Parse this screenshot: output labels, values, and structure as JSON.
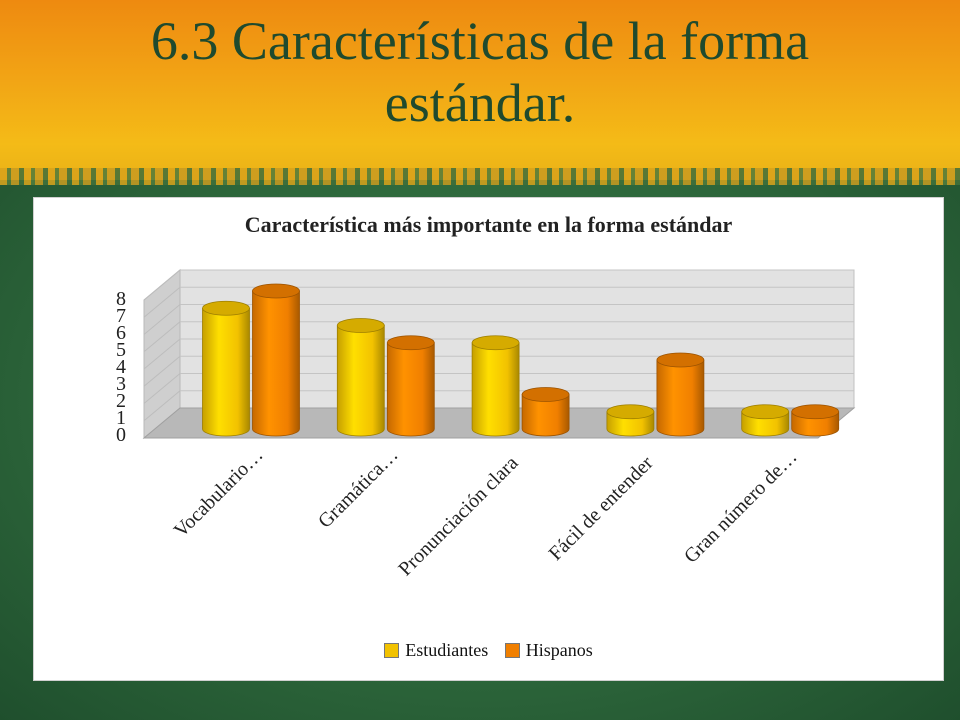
{
  "slide": {
    "title_line1": "6.3  Características de la forma",
    "title_line2": "estándar."
  },
  "chart_data": {
    "type": "bar",
    "title": "Característica más importante en la forma estándar",
    "categories": [
      "Vocabulario…",
      "Gramática…",
      "Pronunciación clara",
      "Fácil de entender",
      "Gran número de…"
    ],
    "series": [
      {
        "name": "Estudiantes",
        "values": [
          7,
          6,
          5,
          1,
          1
        ],
        "color": "#f2c200"
      },
      {
        "name": "Hispanos",
        "values": [
          8,
          5,
          2,
          4,
          1
        ],
        "color": "#f07f00"
      }
    ],
    "ylim": [
      0,
      8
    ],
    "yticks": [
      "0",
      "1",
      "2",
      "3",
      "4",
      "5",
      "6",
      "7",
      "8"
    ],
    "grid": true,
    "legend_position": "bottom",
    "style": "3d-cylinder"
  }
}
